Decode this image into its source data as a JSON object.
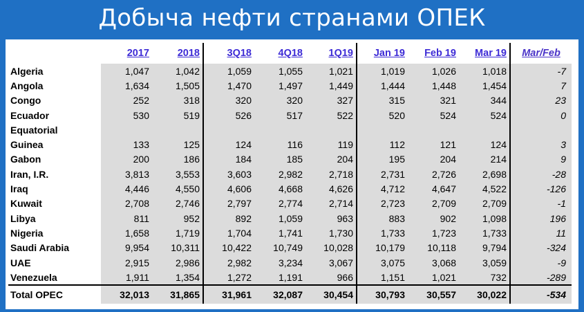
{
  "title": "Добыча нефти странами ОПЕК",
  "chart_data": {
    "type": "table",
    "columns": [
      "2017",
      "2018",
      "3Q18",
      "4Q18",
      "1Q19",
      "Jan 19",
      "Feb 19",
      "Mar 19",
      "Mar/Feb"
    ],
    "rows": [
      {
        "country": "Algeria",
        "country2": "",
        "values": [
          "1,047",
          "1,042",
          "1,059",
          "1,055",
          "1,021",
          "1,019",
          "1,026",
          "1,018",
          "-7"
        ]
      },
      {
        "country": "Angola",
        "country2": "",
        "values": [
          "1,634",
          "1,505",
          "1,470",
          "1,497",
          "1,449",
          "1,444",
          "1,448",
          "1,454",
          "7"
        ]
      },
      {
        "country": "Congo",
        "country2": "",
        "values": [
          "252",
          "318",
          "320",
          "320",
          "327",
          "315",
          "321",
          "344",
          "23"
        ]
      },
      {
        "country": "Ecuador",
        "country2": "",
        "values": [
          "530",
          "519",
          "526",
          "517",
          "522",
          "520",
          "524",
          "524",
          "0"
        ]
      },
      {
        "country": "Equatorial",
        "country2": "Guinea",
        "values": [
          "133",
          "125",
          "124",
          "116",
          "119",
          "112",
          "121",
          "124",
          "3"
        ]
      },
      {
        "country": "Gabon",
        "country2": "",
        "values": [
          "200",
          "186",
          "184",
          "185",
          "204",
          "195",
          "204",
          "214",
          "9"
        ]
      },
      {
        "country": "Iran, I.R.",
        "country2": "",
        "values": [
          "3,813",
          "3,553",
          "3,603",
          "2,982",
          "2,718",
          "2,731",
          "2,726",
          "2,698",
          "-28"
        ]
      },
      {
        "country": "Iraq",
        "country2": "",
        "values": [
          "4,446",
          "4,550",
          "4,606",
          "4,668",
          "4,626",
          "4,712",
          "4,647",
          "4,522",
          "-126"
        ]
      },
      {
        "country": "Kuwait",
        "country2": "",
        "values": [
          "2,708",
          "2,746",
          "2,797",
          "2,774",
          "2,714",
          "2,723",
          "2,709",
          "2,709",
          "-1"
        ]
      },
      {
        "country": "Libya",
        "country2": "",
        "values": [
          "811",
          "952",
          "892",
          "1,059",
          "963",
          "883",
          "902",
          "1,098",
          "196"
        ]
      },
      {
        "country": "Nigeria",
        "country2": "",
        "values": [
          "1,658",
          "1,719",
          "1,704",
          "1,741",
          "1,730",
          "1,733",
          "1,723",
          "1,733",
          "11"
        ]
      },
      {
        "country": "Saudi Arabia",
        "country2": "",
        "values": [
          "9,954",
          "10,311",
          "10,422",
          "10,749",
          "10,028",
          "10,179",
          "10,118",
          "9,794",
          "-324"
        ]
      },
      {
        "country": "UAE",
        "country2": "",
        "values": [
          "2,915",
          "2,986",
          "2,982",
          "3,234",
          "3,067",
          "3,075",
          "3,068",
          "3,059",
          "-9"
        ]
      },
      {
        "country": "Venezuela",
        "country2": "",
        "values": [
          "1,911",
          "1,354",
          "1,272",
          "1,191",
          "966",
          "1,151",
          "1,021",
          "732",
          "-289"
        ]
      }
    ],
    "total": {
      "label": "Total  OPEC",
      "values": [
        "32,013",
        "31,865",
        "31,961",
        "32,087",
        "30,454",
        "30,793",
        "30,557",
        "30,022",
        "-534"
      ]
    }
  },
  "colors": {
    "background": "#1f70c4",
    "header_text": "#3d2bd6",
    "shade": "#dcdcdc"
  }
}
